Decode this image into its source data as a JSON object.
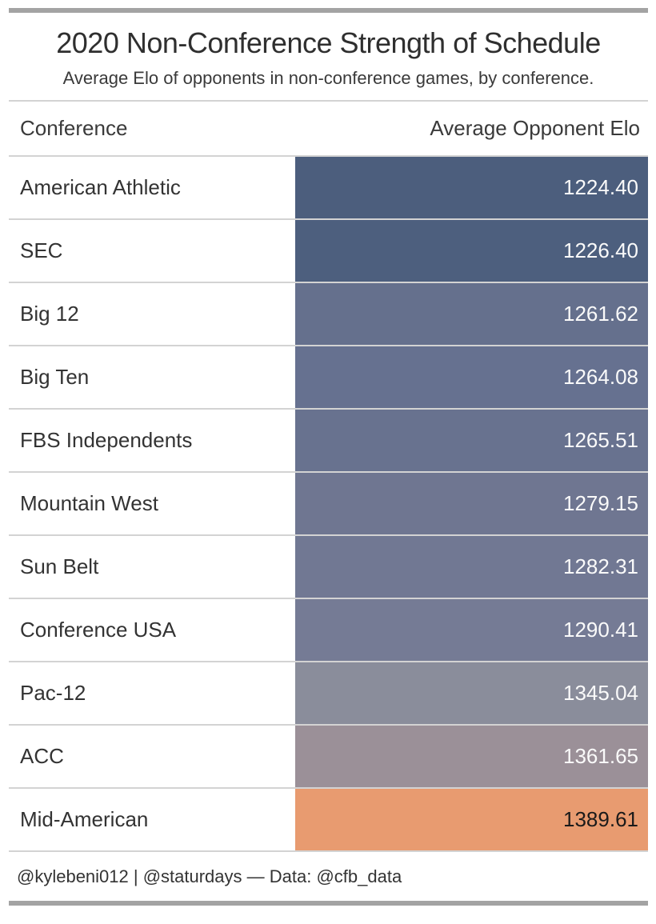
{
  "title": "2020 Non-Conference Strength of Schedule",
  "subtitle": "Average Elo of opponents in non-conference games, by conference.",
  "columns": {
    "conference": "Conference",
    "elo": "Average Opponent Elo"
  },
  "rows": [
    {
      "conference": "American Athletic",
      "elo": "1224.40",
      "bg": "#4c5e7d",
      "fg": "#fafafa"
    },
    {
      "conference": "SEC",
      "elo": "1226.40",
      "bg": "#4d5f7e",
      "fg": "#fafafa"
    },
    {
      "conference": "Big 12",
      "elo": "1261.62",
      "bg": "#65708d",
      "fg": "#fafafa"
    },
    {
      "conference": "Big Ten",
      "elo": "1264.08",
      "bg": "#667190",
      "fg": "#fafafa"
    },
    {
      "conference": "FBS Independents",
      "elo": "1265.51",
      "bg": "#68728f",
      "fg": "#fafafa"
    },
    {
      "conference": "Mountain West",
      "elo": "1279.15",
      "bg": "#6f7691",
      "fg": "#fafafa"
    },
    {
      "conference": "Sun Belt",
      "elo": "1282.31",
      "bg": "#717893",
      "fg": "#fafafa"
    },
    {
      "conference": "Conference USA",
      "elo": "1290.41",
      "bg": "#757b95",
      "fg": "#fafafa"
    },
    {
      "conference": "Pac-12",
      "elo": "1345.04",
      "bg": "#8a8d9b",
      "fg": "#fafafa"
    },
    {
      "conference": "ACC",
      "elo": "1361.65",
      "bg": "#9b9098",
      "fg": "#fafafa"
    },
    {
      "conference": "Mid-American",
      "elo": "1389.61",
      "bg": "#e89b70",
      "fg": "#1a1a1a"
    }
  ],
  "footer": "@kylebeni012 | @staturdays — Data: @cfb_data",
  "colors": {
    "border_bar": "#a3a3a3",
    "row_divider": "#d3d3d3",
    "title_text": "#2f2f2f",
    "body_text": "#333333",
    "value_text_light": "#fafafa",
    "value_text_dark": "#1a1a1a"
  },
  "chart_data": {
    "type": "table",
    "title": "2020 Non-Conference Strength of Schedule",
    "subtitle": "Average Elo of opponents in non-conference games, by conference.",
    "columns": [
      "Conference",
      "Average Opponent Elo"
    ],
    "categories": [
      "American Athletic",
      "SEC",
      "Big 12",
      "Big Ten",
      "FBS Independents",
      "Mountain West",
      "Sun Belt",
      "Conference USA",
      "Pac-12",
      "ACC",
      "Mid-American"
    ],
    "values": [
      1224.4,
      1226.4,
      1261.62,
      1264.08,
      1265.51,
      1279.15,
      1282.31,
      1290.41,
      1345.04,
      1361.65,
      1389.61
    ],
    "cell_colors": [
      "#4c5e7d",
      "#4d5f7e",
      "#65708d",
      "#667190",
      "#68728f",
      "#6f7691",
      "#717893",
      "#757b95",
      "#8a8d9b",
      "#9b9098",
      "#e89b70"
    ],
    "sort_order": "ascending by value",
    "color_scale": "low = dark slate blue, high = orange"
  }
}
